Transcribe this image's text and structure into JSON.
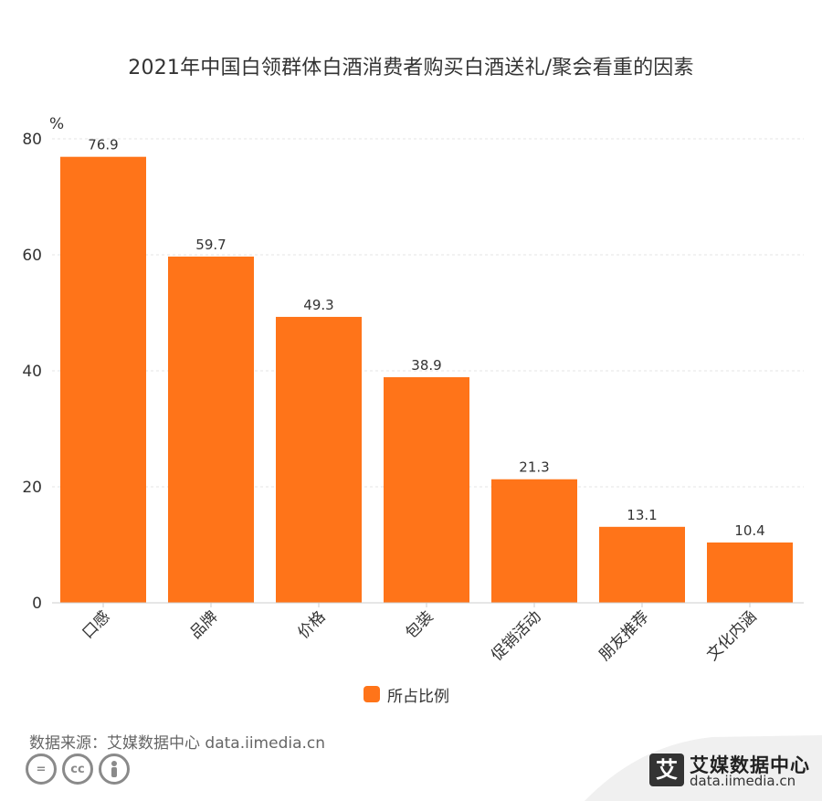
{
  "title": "2021年中国白领群体白酒消费者购买白酒送礼/聚会看重的因素",
  "chart_data": {
    "type": "bar",
    "title": "2021年中国白领群体白酒消费者购买白酒送礼/聚会看重的因素",
    "ylabel": "%",
    "xlabel": "",
    "ylim": [
      0,
      80
    ],
    "yticks": [
      0,
      20,
      40,
      60,
      80
    ],
    "grid": true,
    "legend_position": "bottom-center",
    "categories": [
      "口感",
      "品牌",
      "价格",
      "包装",
      "促销活动",
      "朋友推荐",
      "文化内涵"
    ],
    "series": [
      {
        "name": "所占比例",
        "values": [
          76.9,
          59.7,
          49.3,
          38.9,
          21.3,
          13.1,
          10.4
        ]
      }
    ]
  },
  "colors": {
    "bar": "#FF7419",
    "grid": "#e6e6e6",
    "axis": "#cccccc"
  },
  "source": "数据来源：艾媒数据中心 data.iimedia.cn",
  "brand": {
    "logo_char": "艾",
    "name": "艾媒数据中心",
    "url": "data.iimedia.cn"
  },
  "license_icons": [
    "equals-icon",
    "cc-icon",
    "person-icon"
  ]
}
